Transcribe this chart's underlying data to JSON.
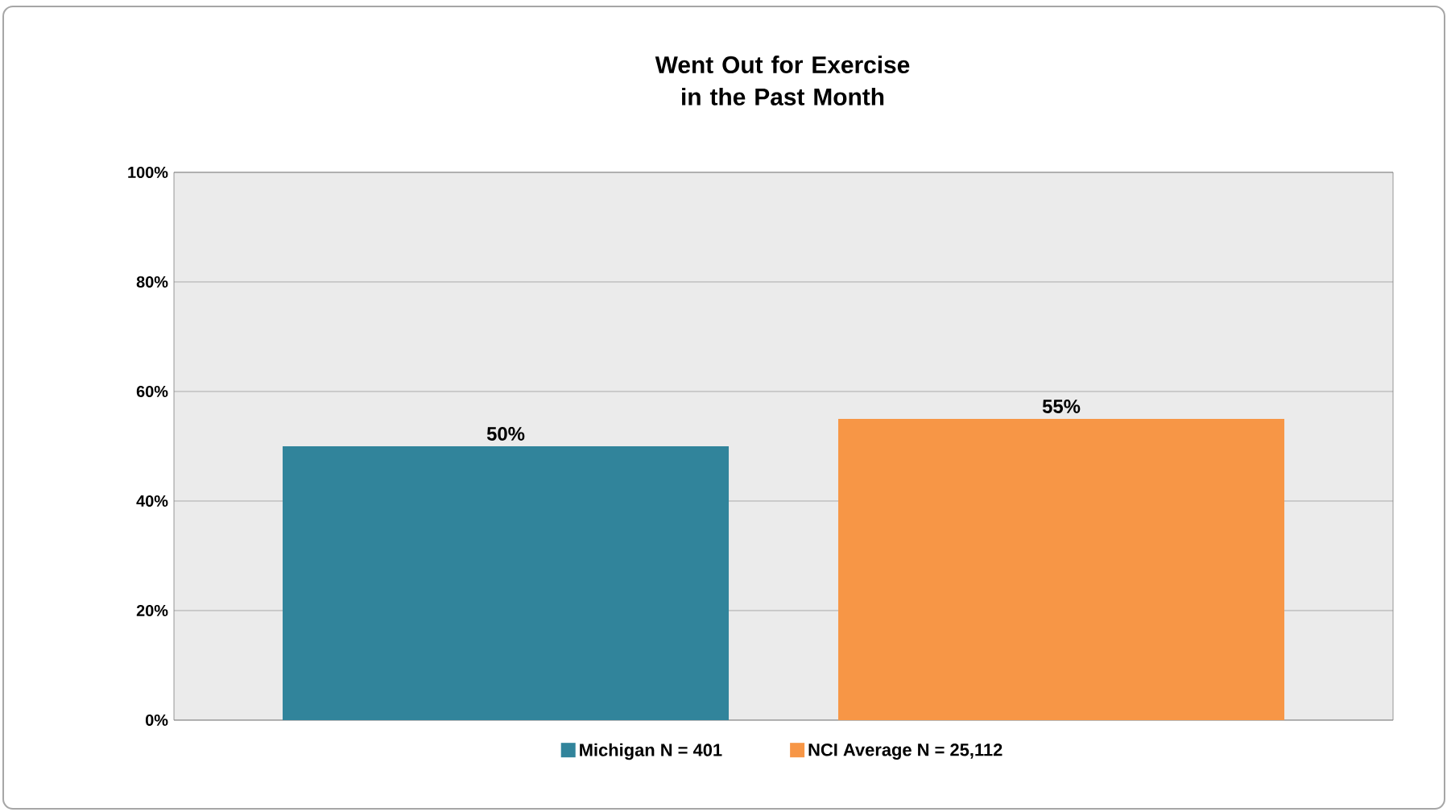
{
  "chart_data": {
    "type": "bar",
    "title": "Went Out for Exercise in the Past Month",
    "categories": [
      null
    ],
    "series": [
      {
        "name": "Michigan N = 401",
        "color": "#31849b",
        "values": [
          50
        ],
        "value_labels": [
          "50%"
        ]
      },
      {
        "name": "NCI Average N = 25,112",
        "color": "#f79646",
        "values": [
          55
        ],
        "value_labels": [
          "55%"
        ]
      }
    ],
    "ylim": [
      0,
      100
    ],
    "yticks": [
      {
        "value": 0,
        "label": "0%"
      },
      {
        "value": 20,
        "label": "20%"
      },
      {
        "value": 40,
        "label": "40%"
      },
      {
        "value": 60,
        "label": "60%"
      },
      {
        "value": 80,
        "label": "80%"
      },
      {
        "value": 100,
        "label": "100%"
      }
    ],
    "grid": "y",
    "legend": "bottom"
  }
}
